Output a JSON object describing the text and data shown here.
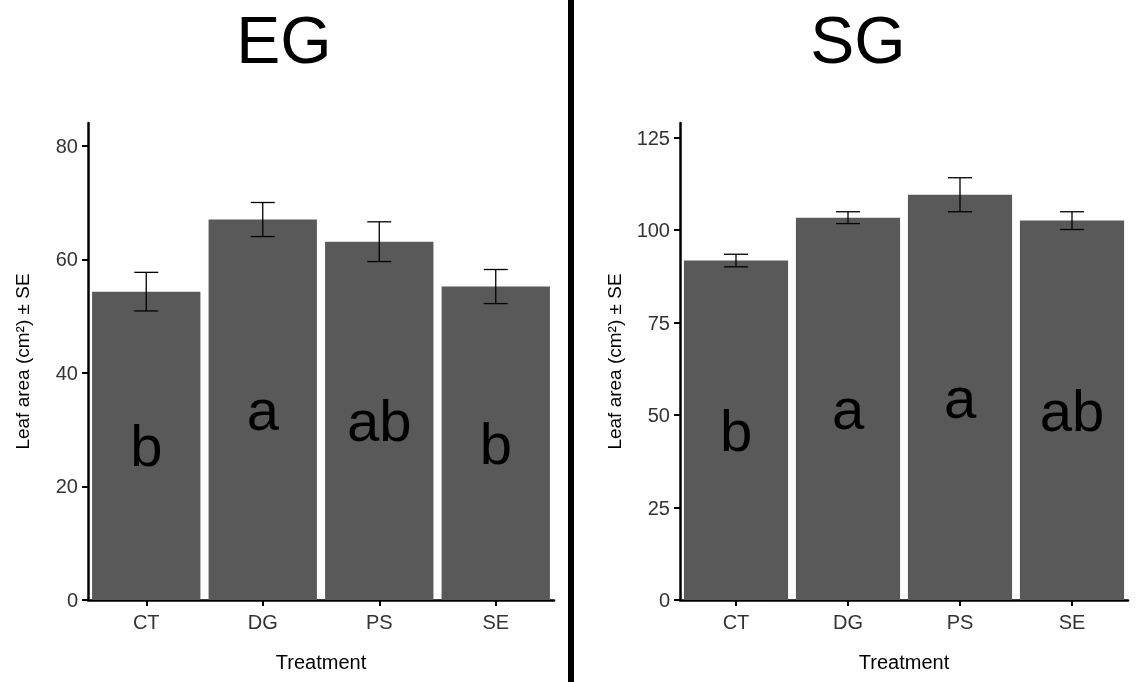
{
  "chart_data": [
    {
      "type": "bar",
      "title": "EG",
      "xlabel": "Treatment",
      "ylabel": "Leaf area (cm²) ± SE",
      "categories": [
        "CT",
        "DG",
        "PS",
        "SE"
      ],
      "series": [
        {
          "color": "#595959",
          "values": [
            54.3,
            67.0,
            63.1,
            55.2
          ],
          "errors": [
            3.4,
            3.0,
            3.5,
            3.0
          ]
        }
      ],
      "ylim": [
        0,
        84
      ],
      "yticks": [
        0,
        20,
        40,
        60,
        80
      ],
      "annotations": [
        "b",
        "a",
        "ab",
        "b"
      ]
    },
    {
      "type": "bar",
      "title": "SG",
      "xlabel": "Treatment",
      "ylabel": "Leaf area (cm²) ± SE",
      "categories": [
        "CT",
        "DG",
        "PS",
        "SE"
      ],
      "series": [
        {
          "color": "#595959",
          "values": [
            91.8,
            103.4,
            109.6,
            102.6
          ],
          "errors": [
            1.7,
            1.6,
            4.6,
            2.4
          ]
        }
      ],
      "ylim": [
        0,
        129
      ],
      "yticks": [
        0,
        25,
        50,
        75,
        100,
        125
      ],
      "annotations": [
        "b",
        "a",
        "a",
        "ab"
      ]
    }
  ]
}
